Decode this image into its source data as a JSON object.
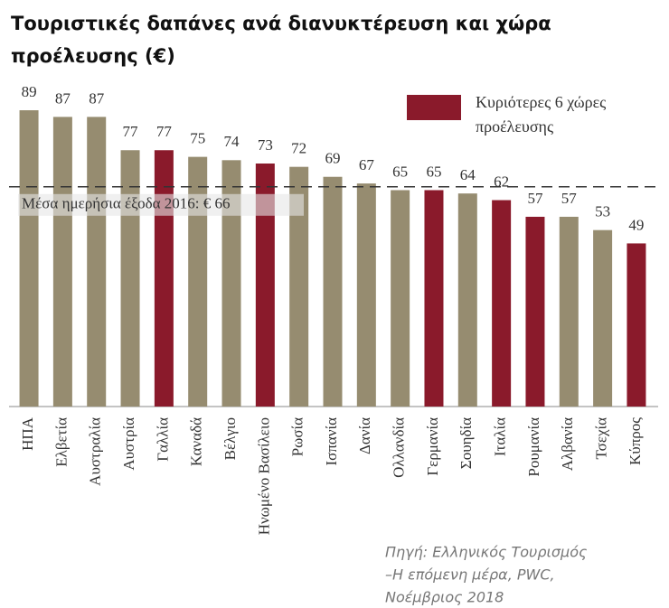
{
  "chart_data": {
    "type": "bar",
    "title": "Τουριστικές δαπάνες ανά διανυκτέρευση και χώρα προέλευσης (€)",
    "categories": [
      "ΗΠΑ",
      "Ελβετία",
      "Αυστραλία",
      "Αυστρία",
      "Γαλλία",
      "Καναδά",
      "Βέλγιο",
      "Ηνωμένο Βασίλειο",
      "Ρωσία",
      "Ισπανία",
      "Δανία",
      "Ολλανδία",
      "Γερμανία",
      "Σουηδία",
      "Ιταλία",
      "Ρουμανία",
      "Αλβανία",
      "Τσεχία",
      "Κύπρος"
    ],
    "values": [
      89,
      87,
      87,
      77,
      77,
      75,
      74,
      73,
      72,
      69,
      67,
      65,
      65,
      64,
      62,
      57,
      57,
      53,
      49
    ],
    "colors": [
      "#968c70",
      "#968c70",
      "#968c70",
      "#968c70",
      "#8a1a2b",
      "#968c70",
      "#968c70",
      "#8a1a2b",
      "#968c70",
      "#968c70",
      "#968c70",
      "#968c70",
      "#8a1a2b",
      "#968c70",
      "#8a1a2b",
      "#8a1a2b",
      "#968c70",
      "#968c70",
      "#8a1a2b"
    ],
    "ylim": [
      0,
      100
    ],
    "reference_line": {
      "value": 66,
      "label": "Μέσα ημερήσια έξοδα 2016: € 66"
    },
    "legend": {
      "label": "Κυριότερες 6 χώρες προέλευσης",
      "color": "#8a1a2b"
    },
    "source": [
      "Πηγή: Ελληνικός Τουρισμός",
      "–Η επόμενη μέρα, PWC,",
      "Νοέμβριος 2018"
    ]
  }
}
